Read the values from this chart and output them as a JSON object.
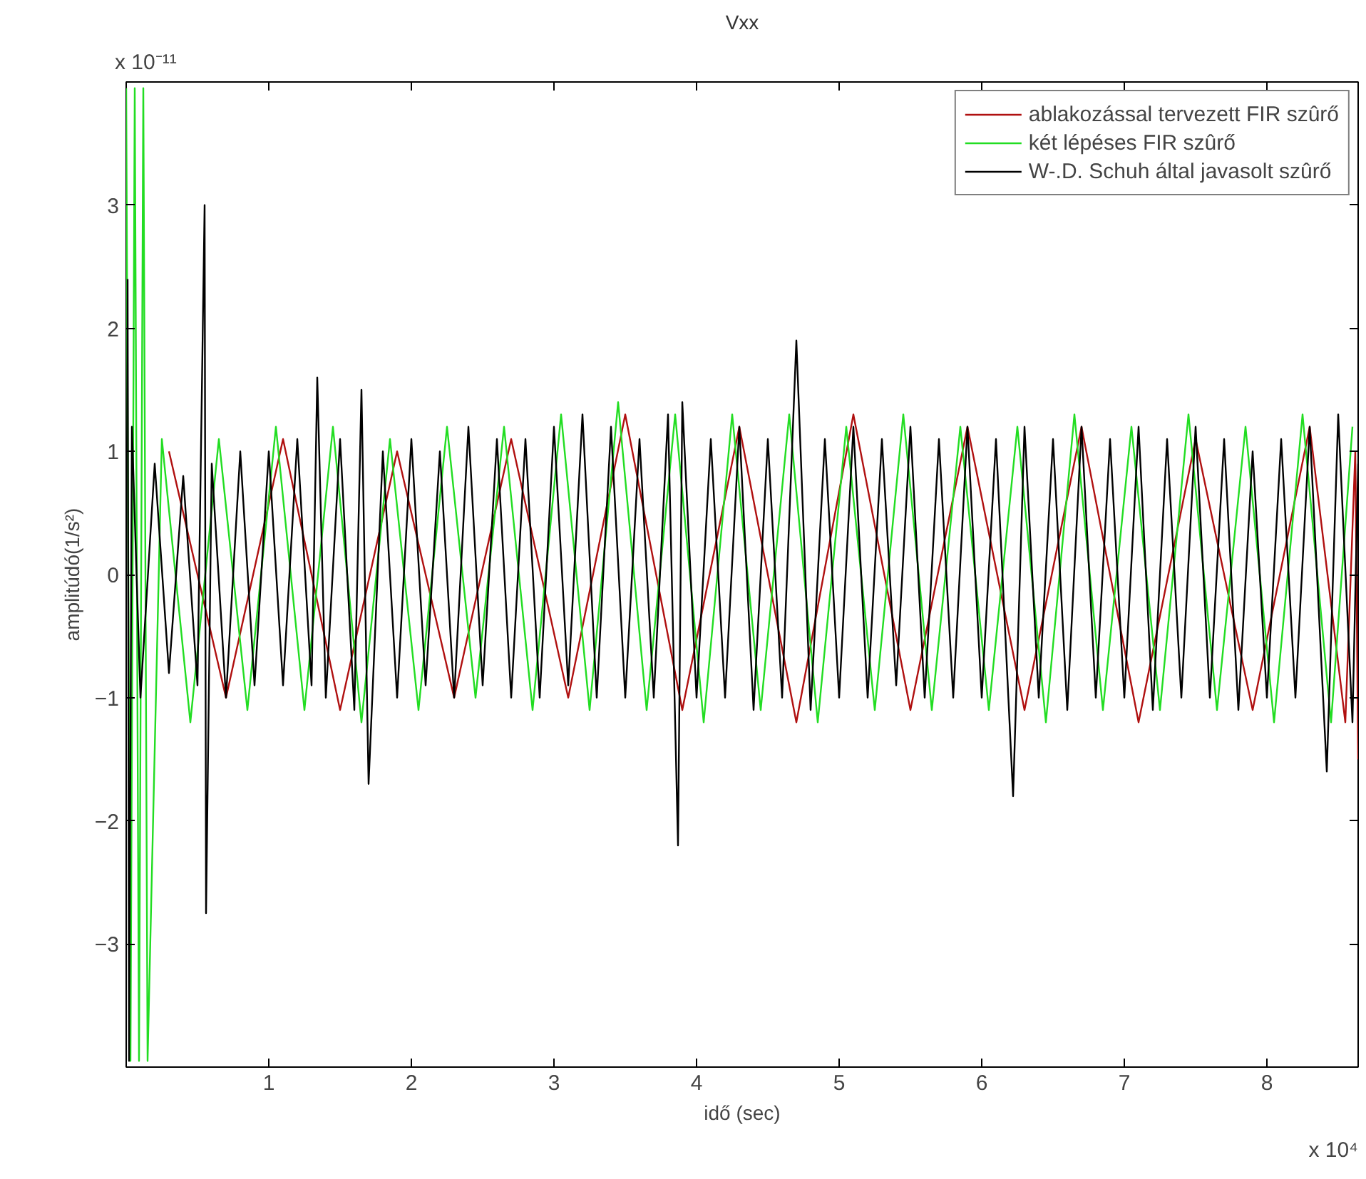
{
  "chart_data": {
    "type": "line",
    "title": "Vxx",
    "xlabel": "idő (sec)",
    "ylabel": "amplitúdó(1/s²)",
    "annotations": [
      "x 10⁻¹¹",
      "x 10⁴"
    ],
    "xlim": [
      0,
      8.64
    ],
    "ylim": [
      -4,
      4
    ],
    "xticks": [
      1,
      2,
      3,
      4,
      5,
      6,
      7,
      8
    ],
    "yticks": [
      -3,
      -2,
      -1,
      0,
      1,
      2,
      3
    ],
    "legend": "top right",
    "series": [
      {
        "name": "ablakozással tervezett FIR szûrő",
        "color": "#b01010",
        "x": [
          0.3,
          0.7,
          1.1,
          1.5,
          1.9,
          2.3,
          2.7,
          3.1,
          3.5,
          3.9,
          4.3,
          4.7,
          5.1,
          5.5,
          5.9,
          6.3,
          6.7,
          7.1,
          7.5,
          7.9,
          8.3,
          8.55,
          8.62,
          8.64
        ],
        "values": [
          1.0,
          -1.0,
          1.1,
          -1.1,
          1.0,
          -1.0,
          1.1,
          -1.0,
          1.3,
          -1.1,
          1.2,
          -1.2,
          1.3,
          -1.1,
          1.2,
          -1.1,
          1.2,
          -1.2,
          1.1,
          -1.1,
          1.2,
          -1.2,
          1.0,
          -1.5
        ]
      },
      {
        "name": "két lépéses FIR szûrő",
        "color": "#22dd22",
        "x": [
          0,
          0.03,
          0.06,
          0.09,
          0.12,
          0.15,
          0.25,
          0.45,
          0.65,
          0.85,
          1.05,
          1.25,
          1.45,
          1.65,
          1.85,
          2.05,
          2.25,
          2.45,
          2.65,
          2.85,
          3.05,
          3.25,
          3.45,
          3.65,
          3.85,
          4.05,
          4.25,
          4.45,
          4.65,
          4.85,
          5.05,
          5.25,
          5.45,
          5.65,
          5.85,
          6.05,
          6.25,
          6.45,
          6.65,
          6.85,
          7.05,
          7.25,
          7.45,
          7.65,
          7.85,
          8.05,
          8.25,
          8.45,
          8.6
        ],
        "values": [
          3.95,
          -3.95,
          3.95,
          -3.95,
          3.95,
          -3.95,
          1.1,
          -1.2,
          1.1,
          -1.1,
          1.2,
          -1.1,
          1.2,
          -1.2,
          1.1,
          -1.1,
          1.2,
          -1.0,
          1.2,
          -1.1,
          1.3,
          -1.1,
          1.4,
          -1.1,
          1.3,
          -1.2,
          1.3,
          -1.1,
          1.3,
          -1.2,
          1.2,
          -1.1,
          1.3,
          -1.1,
          1.2,
          -1.1,
          1.2,
          -1.2,
          1.3,
          -1.1,
          1.2,
          -1.1,
          1.3,
          -1.1,
          1.2,
          -1.2,
          1.3,
          -1.2,
          1.2
        ]
      },
      {
        "name": "W-.D. Schuh által javasolt szûrő",
        "color": "#000000",
        "x": [
          0.01,
          0.02,
          0.04,
          0.1,
          0.2,
          0.3,
          0.4,
          0.5,
          0.55,
          0.56,
          0.6,
          0.7,
          0.8,
          0.9,
          1.0,
          1.1,
          1.2,
          1.3,
          1.34,
          1.4,
          1.5,
          1.6,
          1.65,
          1.7,
          1.8,
          1.9,
          2.0,
          2.1,
          2.2,
          2.3,
          2.4,
          2.5,
          2.6,
          2.7,
          2.8,
          2.9,
          3.0,
          3.1,
          3.2,
          3.3,
          3.4,
          3.5,
          3.6,
          3.7,
          3.8,
          3.87,
          3.9,
          4.0,
          4.1,
          4.2,
          4.3,
          4.4,
          4.5,
          4.6,
          4.7,
          4.8,
          4.9,
          5.0,
          5.1,
          5.2,
          5.3,
          5.4,
          5.5,
          5.6,
          5.7,
          5.8,
          5.9,
          6.0,
          6.1,
          6.22,
          6.3,
          6.4,
          6.5,
          6.6,
          6.7,
          6.8,
          6.9,
          7.0,
          7.1,
          7.2,
          7.3,
          7.4,
          7.5,
          7.6,
          7.7,
          7.8,
          7.9,
          8.0,
          8.1,
          8.2,
          8.3,
          8.42,
          8.5,
          8.6,
          8.64
        ],
        "values": [
          2.4,
          -3.95,
          1.2,
          -1.0,
          0.9,
          -0.8,
          0.8,
          -0.9,
          3.0,
          -2.75,
          0.9,
          -1.0,
          1.0,
          -0.9,
          1.0,
          -0.9,
          1.1,
          -0.9,
          1.6,
          -1.0,
          1.1,
          -1.1,
          1.5,
          -1.7,
          1.0,
          -1.0,
          1.1,
          -0.9,
          1.0,
          -1.0,
          1.2,
          -0.9,
          1.1,
          -1.0,
          1.1,
          -1.0,
          1.2,
          -0.9,
          1.3,
          -1.0,
          1.2,
          -1.0,
          1.1,
          -1.0,
          1.3,
          -2.2,
          1.4,
          -1.0,
          1.1,
          -1.0,
          1.2,
          -1.1,
          1.1,
          -1.0,
          1.9,
          -1.1,
          1.1,
          -1.0,
          1.2,
          -1.0,
          1.1,
          -0.9,
          1.2,
          -1.0,
          1.1,
          -1.0,
          1.2,
          -1.0,
          1.1,
          -1.8,
          1.2,
          -1.0,
          1.1,
          -1.1,
          1.2,
          -1.0,
          1.1,
          -1.0,
          1.2,
          -1.1,
          1.1,
          -1.0,
          1.2,
          -1.0,
          1.1,
          -1.1,
          1.0,
          -1.0,
          1.1,
          -1.0,
          1.2,
          -1.6,
          1.3,
          -1.2,
          0.9
        ]
      }
    ]
  }
}
